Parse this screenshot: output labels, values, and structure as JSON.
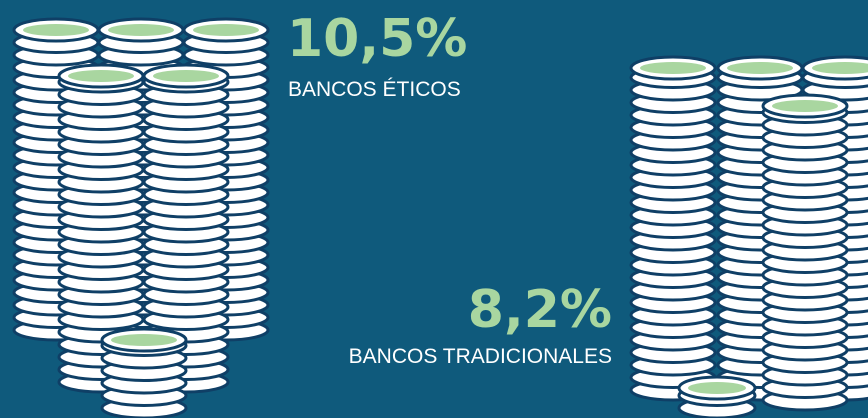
{
  "stats": [
    {
      "value": "10,5%",
      "label": "BANCOS ÉTICOS"
    },
    {
      "value": "8,2%",
      "label": "BANCOS TRADICIONALES"
    }
  ]
}
